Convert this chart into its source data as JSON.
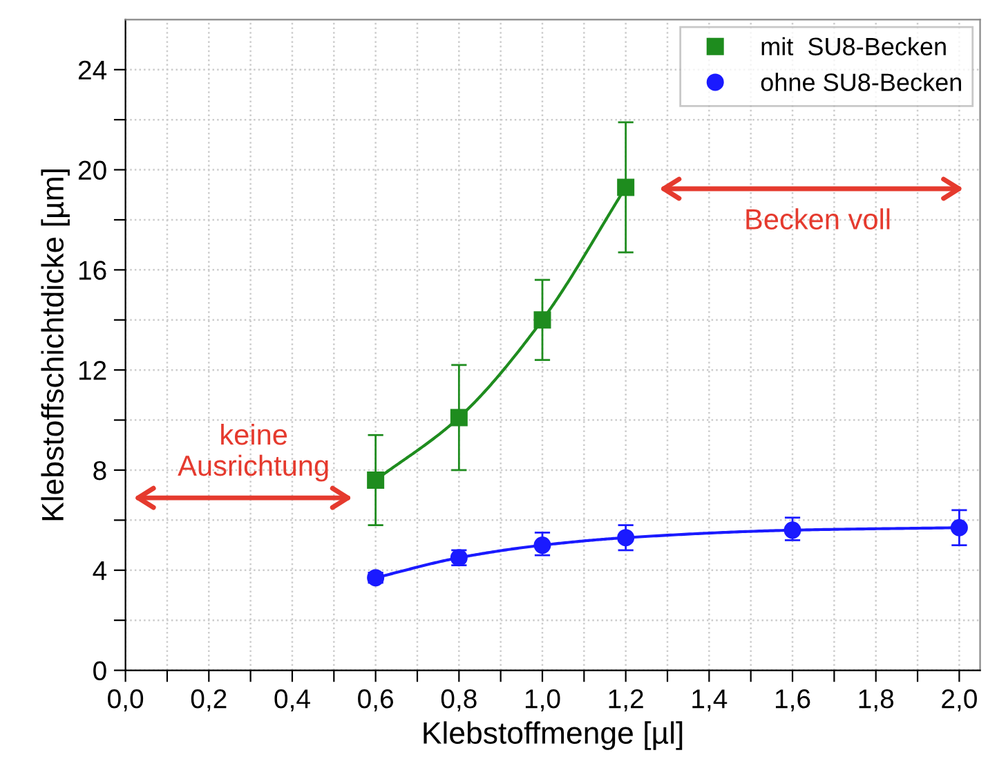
{
  "chart_data": {
    "type": "line",
    "xlabel": "Klebstoffmenge [µl]",
    "ylabel": "Klebstoffschichtdicke [µm]",
    "xlim": [
      0,
      2.05
    ],
    "ylim": [
      0,
      26
    ],
    "xticks": [
      {
        "value": 0,
        "label": "0,0"
      },
      {
        "value": 0.1,
        "label": null
      },
      {
        "value": 0.2,
        "label": "0,2"
      },
      {
        "value": 0.3,
        "label": null
      },
      {
        "value": 0.4,
        "label": "0,4"
      },
      {
        "value": 0.5,
        "label": null
      },
      {
        "value": 0.6,
        "label": "0,6"
      },
      {
        "value": 0.7,
        "label": null
      },
      {
        "value": 0.8,
        "label": "0,8"
      },
      {
        "value": 0.9,
        "label": null
      },
      {
        "value": 1.0,
        "label": "1,0"
      },
      {
        "value": 1.1,
        "label": null
      },
      {
        "value": 1.2,
        "label": "1,2"
      },
      {
        "value": 1.3,
        "label": null
      },
      {
        "value": 1.4,
        "label": "1,4"
      },
      {
        "value": 1.5,
        "label": null
      },
      {
        "value": 1.6,
        "label": "1,6"
      },
      {
        "value": 1.7,
        "label": null
      },
      {
        "value": 1.8,
        "label": "1,8"
      },
      {
        "value": 1.9,
        "label": null
      },
      {
        "value": 2.0,
        "label": "2,0"
      }
    ],
    "yticks": [
      0,
      {
        "value": 2,
        "label": null
      },
      4,
      {
        "value": 6,
        "label": null
      },
      8,
      {
        "value": 10,
        "label": null
      },
      12,
      {
        "value": 14,
        "label": null
      },
      16,
      {
        "value": 18,
        "label": null
      },
      20,
      {
        "value": 22,
        "label": null
      },
      24
    ],
    "grid": true,
    "legend": "top right",
    "line_style": "solid",
    "series": [
      {
        "name": "mit  SU8-Becken",
        "color": "#1e8c1e",
        "marker": "square",
        "x": [
          0.6,
          0.8,
          1.0,
          1.2
        ],
        "values": [
          7.6,
          10.1,
          14.0,
          19.3
        ],
        "errors": [
          [
            5.8,
            9.4
          ],
          [
            8.0,
            12.2
          ],
          [
            12.4,
            15.6
          ],
          [
            16.7,
            21.9
          ]
        ]
      },
      {
        "name": "ohne SU8-Becken",
        "color": "#1a1aff",
        "marker": "circle",
        "x": [
          0.6,
          0.8,
          1.0,
          1.2,
          1.6,
          2.0
        ],
        "values": [
          3.7,
          4.5,
          5.0,
          5.3,
          5.6,
          5.7
        ],
        "errors": [
          [
            3.5,
            3.9
          ],
          [
            4.2,
            4.8
          ],
          [
            4.6,
            5.5
          ],
          [
            4.8,
            5.8
          ],
          [
            5.2,
            6.1
          ],
          [
            5.0,
            6.4
          ]
        ]
      }
    ],
    "annotations": [
      "keine\nAusrichtung",
      "Becken voll"
    ]
  }
}
